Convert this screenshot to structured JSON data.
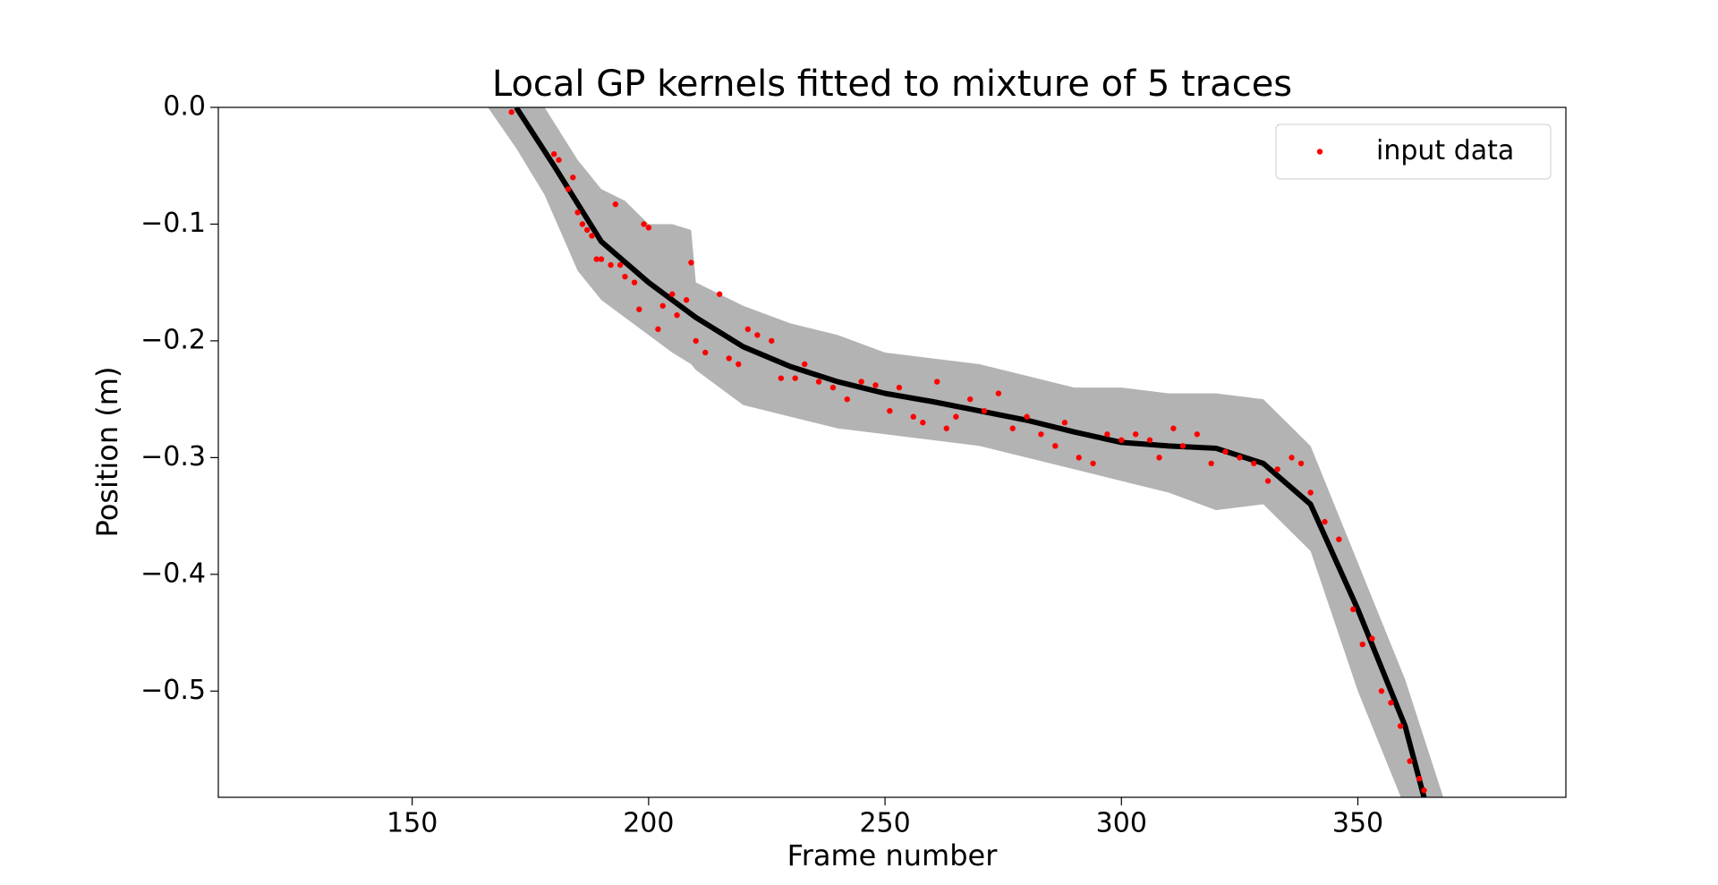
{
  "chart_data": {
    "type": "scatter",
    "title": "Local GP kernels fitted to mixture of 5 traces",
    "xlabel": "Frame number",
    "ylabel": "Position (m)",
    "xlim": [
      109,
      394
    ],
    "ylim": [
      -0.591,
      0
    ],
    "xticks": [
      150,
      200,
      250,
      300,
      350
    ],
    "yticks": [
      {
        "value": 0,
        "label": "0.0"
      },
      {
        "value": -0.1,
        "label": "−0.1"
      },
      {
        "value": -0.2,
        "label": "−0.2"
      },
      {
        "value": -0.3,
        "label": "−0.3"
      },
      {
        "value": -0.4,
        "label": "−0.4"
      },
      {
        "value": -0.5,
        "label": "−0.5"
      }
    ],
    "legend": "upper right",
    "series": [
      {
        "name": "input data",
        "color": "#ff0000",
        "x": [
          171,
          180,
          181,
          183,
          184,
          185,
          186,
          187,
          188,
          189,
          190,
          192,
          193,
          194,
          195,
          197,
          198,
          199,
          200,
          202,
          203,
          205,
          206,
          208,
          209,
          210,
          212,
          215,
          217,
          219,
          221,
          223,
          226,
          228,
          231,
          233,
          236,
          239,
          242,
          245,
          248,
          251,
          253,
          256,
          258,
          261,
          263,
          265,
          268,
          271,
          274,
          277,
          280,
          283,
          286,
          288,
          291,
          294,
          297,
          300,
          303,
          306,
          308,
          311,
          313,
          316,
          319,
          322,
          325,
          328,
          331,
          333,
          336,
          338,
          340,
          343,
          346,
          349,
          351,
          353,
          355,
          357,
          359,
          361,
          363,
          364
        ],
        "values": [
          -0.004,
          -0.04,
          -0.045,
          -0.07,
          -0.06,
          -0.09,
          -0.1,
          -0.105,
          -0.11,
          -0.13,
          -0.13,
          -0.135,
          -0.083,
          -0.135,
          -0.145,
          -0.15,
          -0.173,
          -0.1,
          -0.103,
          -0.19,
          -0.17,
          -0.16,
          -0.178,
          -0.165,
          -0.133,
          -0.2,
          -0.21,
          -0.16,
          -0.215,
          -0.22,
          -0.19,
          -0.195,
          -0.2,
          -0.232,
          -0.232,
          -0.22,
          -0.235,
          -0.24,
          -0.25,
          -0.235,
          -0.238,
          -0.26,
          -0.24,
          -0.265,
          -0.27,
          -0.235,
          -0.275,
          -0.265,
          -0.25,
          -0.26,
          -0.245,
          -0.275,
          -0.265,
          -0.28,
          -0.29,
          -0.27,
          -0.3,
          -0.305,
          -0.28,
          -0.285,
          -0.28,
          -0.285,
          -0.3,
          -0.275,
          -0.29,
          -0.28,
          -0.305,
          -0.295,
          -0.3,
          -0.305,
          -0.32,
          -0.31,
          -0.3,
          -0.305,
          -0.33,
          -0.355,
          -0.37,
          -0.43,
          -0.46,
          -0.455,
          -0.5,
          -0.51,
          -0.53,
          -0.56,
          -0.575,
          -0.585
        ]
      }
    ],
    "fit": {
      "color": "#000000",
      "x": [
        172,
        180,
        190,
        200,
        210,
        220,
        230,
        240,
        250,
        260,
        270,
        280,
        290,
        300,
        310,
        320,
        330,
        340,
        350,
        360,
        364
      ],
      "values": [
        0,
        -0.05,
        -0.115,
        -0.15,
        -0.18,
        -0.205,
        -0.222,
        -0.235,
        -0.245,
        -0.252,
        -0.26,
        -0.268,
        -0.278,
        -0.287,
        -0.29,
        -0.292,
        -0.305,
        -0.34,
        -0.43,
        -0.53,
        -0.591
      ]
    },
    "band": {
      "color": "#b3b3b3",
      "x": [
        166,
        172,
        178,
        185,
        190,
        195,
        200,
        205,
        209,
        210,
        220,
        230,
        240,
        250,
        260,
        270,
        280,
        290,
        300,
        310,
        320,
        330,
        340,
        350,
        360,
        368
      ],
      "upper": [
        0.04,
        0.02,
        0,
        -0.045,
        -0.07,
        -0.08,
        -0.1,
        -0.1,
        -0.105,
        -0.15,
        -0.17,
        -0.185,
        -0.195,
        -0.21,
        -0.215,
        -0.22,
        -0.23,
        -0.24,
        -0.24,
        -0.245,
        -0.245,
        -0.25,
        -0.29,
        -0.39,
        -0.49,
        -0.59
      ],
      "lower": [
        0,
        -0.035,
        -0.075,
        -0.14,
        -0.165,
        -0.18,
        -0.195,
        -0.21,
        -0.22,
        -0.225,
        -0.255,
        -0.265,
        -0.275,
        -0.28,
        -0.285,
        -0.29,
        -0.3,
        -0.31,
        -0.32,
        -0.33,
        -0.345,
        -0.34,
        -0.38,
        -0.5,
        -0.6,
        -0.68
      ]
    }
  }
}
